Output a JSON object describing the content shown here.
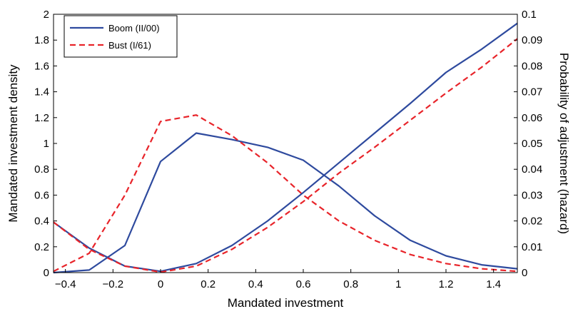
{
  "chart_data": {
    "type": "line",
    "title": "",
    "xlabel": "Mandated investment",
    "ylabel_left": "Mandated investment density",
    "ylabel_right": "Probability of adjustment (hazard)",
    "xlim": [
      -0.45,
      1.5
    ],
    "ylim_left": [
      0,
      2
    ],
    "ylim_right": [
      0,
      0.1
    ],
    "x_ticks": [
      -0.4,
      -0.2,
      0,
      0.2,
      0.4,
      0.6,
      0.8,
      1,
      1.2,
      1.4
    ],
    "x_tick_labels": [
      "−0.4",
      "−0.2",
      "0",
      "0.2",
      "0.4",
      "0.6",
      "0.8",
      "1",
      "1.2",
      "1.4"
    ],
    "y_left_ticks": [
      0,
      0.2,
      0.4,
      0.6,
      0.8,
      1,
      1.2,
      1.4,
      1.6,
      1.8,
      2
    ],
    "y_left_tick_labels": [
      "0",
      "0.2",
      "0.4",
      "0.6",
      "0.8",
      "1",
      "1.2",
      "1.4",
      "1.6",
      "1.8",
      "2"
    ],
    "y_right_ticks": [
      0,
      0.01,
      0.02,
      0.03,
      0.04,
      0.05,
      0.06,
      0.07,
      0.08,
      0.09,
      0.1
    ],
    "y_right_tick_labels": [
      "0",
      "0.01",
      "0.02",
      "0.03",
      "0.04",
      "0.05",
      "0.06",
      "0.07",
      "0.08",
      "0.09",
      "0.1"
    ],
    "grid": false,
    "legend_position": "top-left",
    "series": [
      {
        "name": "Boom (II/00)",
        "axis": "left",
        "color": "#2e4a9e",
        "dash": "solid",
        "x": [
          -0.45,
          -0.3,
          -0.15,
          0,
          0.15,
          0.3,
          0.45,
          0.6,
          0.75,
          0.9,
          1.05,
          1.2,
          1.35,
          1.5
        ],
        "y": [
          0,
          0.02,
          0.21,
          0.86,
          1.08,
          1.03,
          0.97,
          0.87,
          0.67,
          0.44,
          0.25,
          0.13,
          0.06,
          0.03
        ]
      },
      {
        "name": "Bust (I/61)",
        "axis": "left",
        "color": "#e8242a",
        "dash": "dashed",
        "x": [
          -0.45,
          -0.3,
          -0.15,
          0,
          0.15,
          0.3,
          0.45,
          0.6,
          0.75,
          0.9,
          1.05,
          1.2,
          1.35,
          1.5
        ],
        "y": [
          0.01,
          0.15,
          0.6,
          1.17,
          1.22,
          1.06,
          0.85,
          0.6,
          0.4,
          0.25,
          0.14,
          0.07,
          0.03,
          0.01
        ]
      },
      {
        "name": "Boom (II/00)",
        "axis": "right",
        "color": "#2e4a9e",
        "dash": "solid",
        "x": [
          -0.45,
          -0.3,
          -0.15,
          0,
          0.15,
          0.3,
          0.45,
          0.6,
          0.75,
          0.9,
          1.05,
          1.2,
          1.35,
          1.5
        ],
        "y": [
          0.0195,
          0.0095,
          0.0025,
          0.0005,
          0.0035,
          0.0105,
          0.02,
          0.031,
          0.0425,
          0.054,
          0.0655,
          0.0775,
          0.0865,
          0.0965
        ]
      },
      {
        "name": "Bust (I/61)",
        "axis": "right",
        "color": "#e8242a",
        "dash": "dashed",
        "x": [
          -0.45,
          -0.3,
          -0.15,
          0,
          0.15,
          0.3,
          0.45,
          0.6,
          0.75,
          0.9,
          1.05,
          1.2,
          1.35,
          1.5
        ],
        "y": [
          0.0195,
          0.009,
          0.0025,
          0.0002,
          0.0025,
          0.009,
          0.0175,
          0.0275,
          0.0385,
          0.0485,
          0.059,
          0.0695,
          0.0795,
          0.0905
        ]
      }
    ],
    "legend": [
      {
        "label": "Boom (II/00)",
        "color": "#2e4a9e",
        "dash": "solid"
      },
      {
        "label": "Bust (I/61)",
        "color": "#e8242a",
        "dash": "dashed"
      }
    ]
  }
}
